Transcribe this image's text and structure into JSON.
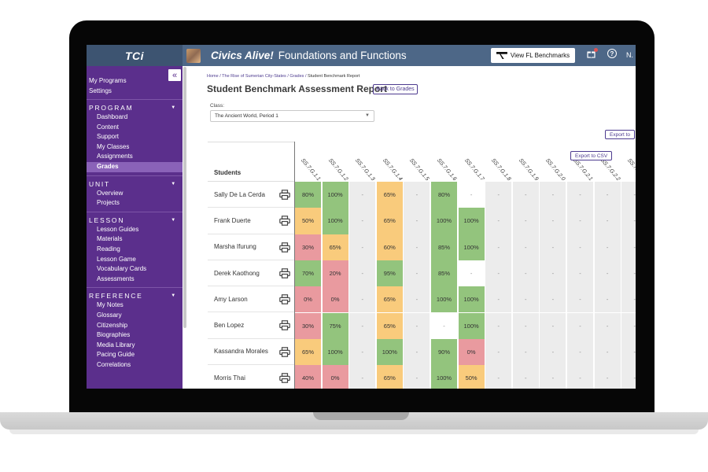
{
  "topbar": {
    "logo": "TCi",
    "program_name": "Civics Alive!",
    "program_subtitle": "Foundations and Functions",
    "benchmarks_button": "View FL Benchmarks",
    "help_icon": "?",
    "user_initial": "N."
  },
  "sidebar": {
    "collapse_label": "«",
    "top_links": [
      "My Programs",
      "Settings"
    ],
    "sections": [
      {
        "title": "PROGRAM",
        "items": [
          "Dashboard",
          "Content",
          "Support",
          "My Classes",
          "Assignments",
          "Grades"
        ],
        "active": "Grades"
      },
      {
        "title": "UNIT",
        "items": [
          "Overview",
          "Projects"
        ]
      },
      {
        "title": "LESSON",
        "items": [
          "Lesson Guides",
          "Materials",
          "Reading",
          "Lesson Game",
          "Vocabulary Cards",
          "Assessments"
        ]
      },
      {
        "title": "REFERENCE",
        "items": [
          "My Notes",
          "Glossary",
          "Citizenship",
          "Biographies",
          "Media Library",
          "Pacing Guide",
          "Correlations"
        ]
      }
    ]
  },
  "breadcrumb": {
    "home": "Home",
    "lesson": "The Rise of Sumerian City-States",
    "grades": "Grades",
    "current": "Student Benchmark Report"
  },
  "page": {
    "title": "Student Benchmark Assessment Report",
    "back_button": "Back to Grades",
    "class_label": "Class:",
    "class_value": "The Ancient World, Period 1",
    "export_top": "Export to",
    "export_csv": "Export to CSV"
  },
  "table": {
    "students_header": "Students",
    "benchmarks": [
      "SS.7.G.1.1",
      "SS.7.G.1.2",
      "SS.7.G.1.3",
      "SS.7.G.1.4",
      "SS.7.G.1.5",
      "SS.7.G.1.6",
      "SS.7.G.1.7",
      "SS.7.G.1.8",
      "SS.7.G.1.9",
      "SS.7.G.2.0",
      "SS.7.G.2.1",
      "SS.7.G.2.2",
      "SS.7.G.2.3"
    ],
    "students": [
      {
        "name": "Sally De La Cerda",
        "scores": [
          "80%",
          "100%",
          "-",
          "65%",
          "-",
          "80%",
          "-",
          "-",
          "-",
          "-",
          "-",
          "-",
          "-"
        ]
      },
      {
        "name": "Frank Duerte",
        "scores": [
          "50%",
          "100%",
          "-",
          "65%",
          "-",
          "100%",
          "100%",
          "-",
          "-",
          "-",
          "-",
          "-",
          "-"
        ]
      },
      {
        "name": "Marsha Ifurung",
        "scores": [
          "30%",
          "65%",
          "-",
          "60%",
          "-",
          "85%",
          "100%",
          "-",
          "-",
          "-",
          "-",
          "-",
          "-"
        ]
      },
      {
        "name": "Derek Kaothong",
        "scores": [
          "70%",
          "20%",
          "-",
          "95%",
          "-",
          "85%",
          "-",
          "-",
          "-",
          "-",
          "-",
          "-",
          "-"
        ]
      },
      {
        "name": "Amy Larson",
        "scores": [
          "0%",
          "0%",
          "-",
          "65%",
          "-",
          "100%",
          "100%",
          "-",
          "-",
          "-",
          "-",
          "-",
          "-"
        ]
      },
      {
        "name": "Ben Lopez",
        "scores": [
          "30%",
          "75%",
          "-",
          "65%",
          "-",
          "-",
          "100%",
          "-",
          "-",
          "-",
          "-",
          "-",
          "-"
        ]
      },
      {
        "name": "Kassandra Morales",
        "scores": [
          "65%",
          "100%",
          "-",
          "100%",
          "-",
          "90%",
          "0%",
          "-",
          "-",
          "-",
          "-",
          "-",
          "-"
        ]
      },
      {
        "name": "Morris Thai",
        "scores": [
          "40%",
          "0%",
          "-",
          "65%",
          "-",
          "100%",
          "50%",
          "-",
          "-",
          "-",
          "-",
          "-",
          "-"
        ]
      }
    ]
  },
  "colors": {
    "high": "#93c47d",
    "mid": "#f9cb7c",
    "low": "#e99a9f",
    "none": "#ececec",
    "sidebar": "#5b2f8c",
    "topbar": "#4d6787"
  }
}
